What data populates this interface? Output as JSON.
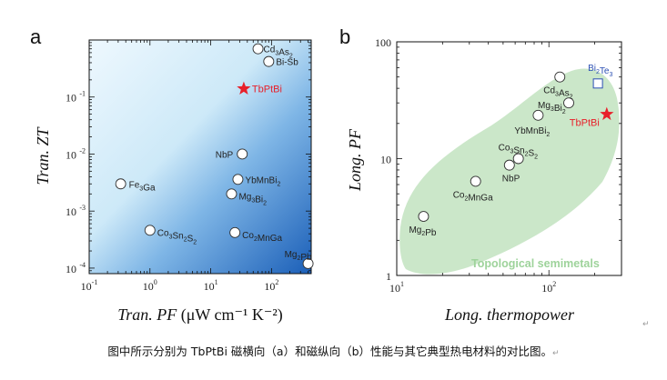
{
  "chart_data": [
    {
      "panel": "a",
      "type": "scatter",
      "xscale": "log",
      "yscale": "log",
      "xlim": [
        0.1,
        450
      ],
      "ylim": [
        8e-05,
        1.0
      ],
      "xlabel": "Tran. PF",
      "xlabel_unit": "(μW cm⁻¹ K⁻²)",
      "ylabel": "Tran. ZT",
      "xticks": [
        {
          "v": 0.1,
          "m": "10",
          "e": "-1"
        },
        {
          "v": 1,
          "m": "10",
          "e": "0"
        },
        {
          "v": 10,
          "m": "10",
          "e": "1"
        },
        {
          "v": 100,
          "m": "10",
          "e": "2"
        }
      ],
      "yticks": [
        {
          "v": 0.0001,
          "m": "10",
          "e": "-4"
        },
        {
          "v": 0.001,
          "m": "10",
          "e": "-3"
        },
        {
          "v": 0.01,
          "m": "10",
          "e": "-2"
        },
        {
          "v": 0.1,
          "m": "10",
          "e": "-1"
        }
      ],
      "points": [
        {
          "label": "Cd3As2",
          "x": 60,
          "y": 0.7,
          "dx": 6,
          "dy": 4,
          "anchor": "start"
        },
        {
          "label": "Bi-Sb",
          "x": 90,
          "y": 0.42,
          "dx": 8,
          "dy": 4,
          "anchor": "start"
        },
        {
          "label": "TbPtBi",
          "x": 35,
          "y": 0.14,
          "marker": "star",
          "dx": 9,
          "dy": 4,
          "anchor": "start"
        },
        {
          "label": "NbP",
          "x": 33,
          "y": 0.01,
          "dx": -10,
          "dy": 4,
          "anchor": "end"
        },
        {
          "label": "YbMnBi2",
          "x": 28,
          "y": 0.0036,
          "dx": 8,
          "dy": 4,
          "anchor": "start"
        },
        {
          "label": "Mg3Bi2",
          "x": 22,
          "y": 0.002,
          "dx": 8,
          "dy": 6,
          "anchor": "start"
        },
        {
          "label": "Fe3Ga",
          "x": 0.33,
          "y": 0.003,
          "dx": 9,
          "dy": 4,
          "anchor": "start"
        },
        {
          "label": "Co3Sn2S2",
          "x": 1.0,
          "y": 0.00046,
          "dx": 8,
          "dy": 6,
          "anchor": "start"
        },
        {
          "label": "Co2MnGa",
          "x": 25,
          "y": 0.00042,
          "dx": 8,
          "dy": 6,
          "anchor": "start"
        },
        {
          "label": "Mg2Pb",
          "x": 400,
          "y": 0.00012,
          "dx": -26,
          "dy": -7,
          "anchor": "start"
        }
      ],
      "colors": {
        "background_light": "#e6f5fd",
        "background_dark": "#1b5fb8",
        "star": "#e8202a",
        "marker_fill": "#ffffff"
      }
    },
    {
      "panel": "b",
      "type": "scatter",
      "xscale": "log",
      "yscale": "log",
      "xlim": [
        10,
        300
      ],
      "ylim": [
        1,
        100
      ],
      "xlabel": "Long. thermopower",
      "ylabel": "Long. PF",
      "xticks": [
        {
          "v": 10,
          "m": "10",
          "e": "1"
        },
        {
          "v": 100,
          "m": "10",
          "e": "2"
        }
      ],
      "yticks": [
        {
          "v": 1,
          "m": "1",
          "e": ""
        },
        {
          "v": 10,
          "m": "10",
          "e": ""
        },
        {
          "v": 100,
          "m": "100",
          "e": ""
        }
      ],
      "region_label": "Topological semimetals",
      "points": [
        {
          "label": "Mg2Pb",
          "x": 15,
          "y": 3.2,
          "dx": -16,
          "dy": 18,
          "anchor": "start"
        },
        {
          "label": "Co2MnGa",
          "x": 33,
          "y": 6.4,
          "dx": -25,
          "dy": 18,
          "anchor": "start"
        },
        {
          "label": "NbP",
          "x": 55,
          "y": 8.8,
          "dx": -8,
          "dy": 18,
          "anchor": "start"
        },
        {
          "label": "Co3Sn2S2",
          "x": 63,
          "y": 10,
          "dx": -22,
          "dy": -9,
          "anchor": "start"
        },
        {
          "label": "YbMnBi2",
          "x": 85,
          "y": 23.5,
          "dx": -26,
          "dy": 20,
          "anchor": "start"
        },
        {
          "label": "Mg3Bi2",
          "x": 135,
          "y": 30,
          "dx": -34,
          "dy": 6,
          "anchor": "start"
        },
        {
          "label": "Cd3As2",
          "x": 118,
          "y": 50,
          "dx": -18,
          "dy": 18,
          "anchor": "start"
        },
        {
          "label": "TbPtBi",
          "x": 240,
          "y": 24,
          "marker": "star",
          "dx": -41,
          "dy": 13,
          "anchor": "start"
        },
        {
          "label": "Bi2Te3",
          "x": 210,
          "y": 44,
          "marker": "square",
          "dx": -11,
          "dy": -14,
          "anchor": "start"
        }
      ],
      "colors": {
        "region": "#c2e3bf",
        "star": "#e8202a",
        "reference": "#2b4fb3",
        "marker_fill": "#ffffff"
      }
    }
  ],
  "panel_labels": [
    "a",
    "b"
  ],
  "caption": "图中所示分别为 TbPtBi 磁横向（a）和磁纵向（b）性能与其它典型热电材料的对比图。",
  "caption_mark": "↵",
  "corner_mark": "↵"
}
